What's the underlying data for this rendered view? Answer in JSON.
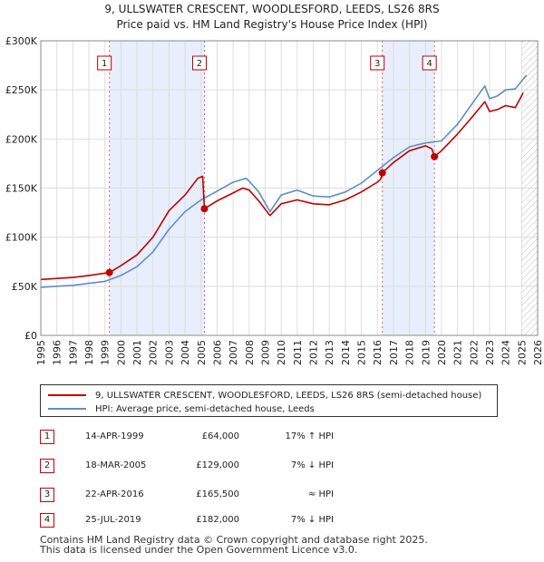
{
  "title": {
    "line1": "9, ULLSWATER CRESCENT, WOODLESFORD, LEEDS, LS26 8RS",
    "line2": "Price paid vs. HM Land Registry's House Price Index (HPI)"
  },
  "colors": {
    "price": "#c00000",
    "hpi": "#5b8fc9",
    "shade": "#e8eefb",
    "grid": "#dddddd"
  },
  "chart_data": {
    "type": "line",
    "xlim": [
      1995,
      2026
    ],
    "ylim": [
      0,
      300000
    ],
    "y_ticks": [
      0,
      50000,
      100000,
      150000,
      200000,
      250000,
      300000
    ],
    "y_tick_labels": [
      "£0",
      "£50K",
      "£100K",
      "£150K",
      "£200K",
      "£250K",
      "£300K"
    ],
    "x_tick_labels": [
      "1995",
      "1996",
      "1997",
      "1998",
      "1999",
      "2000",
      "2001",
      "2002",
      "2003",
      "2004",
      "2005",
      "2006",
      "2007",
      "2008",
      "2009",
      "2010",
      "2011",
      "2012",
      "2013",
      "2014",
      "2015",
      "2016",
      "2017",
      "2018",
      "2019",
      "2020",
      "2021",
      "2022",
      "2023",
      "2024",
      "2025",
      "2026"
    ],
    "shaded_ranges": [
      [
        1999.28,
        2005.21
      ],
      [
        2016.31,
        2019.56
      ]
    ],
    "future_from": 2025.0,
    "series": [
      {
        "name": "9, ULLSWATER CRESCENT, WOODLESFORD, LEEDS, LS26 8RS (semi-detached house)",
        "color": "#c00000",
        "x": [
          1995,
          1996,
          1997,
          1998,
          1999.28,
          2000,
          2001,
          2002,
          2003,
          2004,
          2004.8,
          2005.1,
          2005.21,
          2006,
          2007,
          2007.6,
          2008,
          2008.6,
          2009.3,
          2010,
          2011,
          2012,
          2013,
          2014,
          2015,
          2016,
          2016.2,
          2016.31,
          2017,
          2018,
          2019,
          2019.4,
          2019.56,
          2020,
          2021,
          2022,
          2022.7,
          2023,
          2023.5,
          2024,
          2024.6,
          2025.1
        ],
        "y": [
          57000,
          58000,
          59000,
          61000,
          64000,
          71000,
          82000,
          100000,
          127000,
          143000,
          160000,
          162000,
          129000,
          137000,
          145000,
          150000,
          148000,
          137000,
          122000,
          134000,
          138000,
          134000,
          133000,
          138000,
          146000,
          156000,
          159000,
          165500,
          176000,
          188000,
          193000,
          190000,
          182000,
          188000,
          205000,
          224000,
          238000,
          228000,
          230000,
          234000,
          232000,
          247000
        ]
      },
      {
        "name": "HPI: Average price, semi-detached house, Leeds",
        "color": "#5b8fc9",
        "x": [
          1995,
          1996,
          1997,
          1998,
          1999,
          2000,
          2001,
          2002,
          2003,
          2004,
          2005,
          2006,
          2007,
          2007.8,
          2008,
          2008.6,
          2009.3,
          2010,
          2011,
          2012,
          2013,
          2014,
          2015,
          2016,
          2017,
          2018,
          2019,
          2020,
          2021,
          2022,
          2022.7,
          2023,
          2023.5,
          2024,
          2024.6,
          2025.3
        ],
        "y": [
          49000,
          50000,
          51000,
          53000,
          55000,
          61000,
          70000,
          85000,
          108000,
          126000,
          138000,
          147000,
          156000,
          160000,
          157000,
          146000,
          126000,
          143000,
          148000,
          142000,
          141000,
          146000,
          155000,
          168000,
          181000,
          192000,
          196000,
          198000,
          215000,
          238000,
          254000,
          241000,
          244000,
          250000,
          251000,
          265000
        ]
      }
    ],
    "sales": [
      {
        "n": "1",
        "x": 1999.28,
        "y": 64000
      },
      {
        "n": "2",
        "x": 2005.21,
        "y": 129000
      },
      {
        "n": "3",
        "x": 2016.31,
        "y": 165500
      },
      {
        "n": "4",
        "x": 2019.56,
        "y": 182000
      }
    ]
  },
  "legend": {
    "price": "9, ULLSWATER CRESCENT, WOODLESFORD, LEEDS, LS26 8RS (semi-detached house)",
    "hpi": "HPI: Average price, semi-detached house, Leeds"
  },
  "sales_table": [
    {
      "n": "1",
      "date": "14-APR-1999",
      "price": "£64,000",
      "hpi": "17% ↑ HPI"
    },
    {
      "n": "2",
      "date": "18-MAR-2005",
      "price": "£129,000",
      "hpi": "7% ↓ HPI"
    },
    {
      "n": "3",
      "date": "22-APR-2016",
      "price": "£165,500",
      "hpi": "≈ HPI"
    },
    {
      "n": "4",
      "date": "25-JUL-2019",
      "price": "£182,000",
      "hpi": "7% ↓ HPI"
    }
  ],
  "footer": {
    "line1": "Contains HM Land Registry data © Crown copyright and database right 2025.",
    "line2": "This data is licensed under the Open Government Licence v3.0."
  }
}
